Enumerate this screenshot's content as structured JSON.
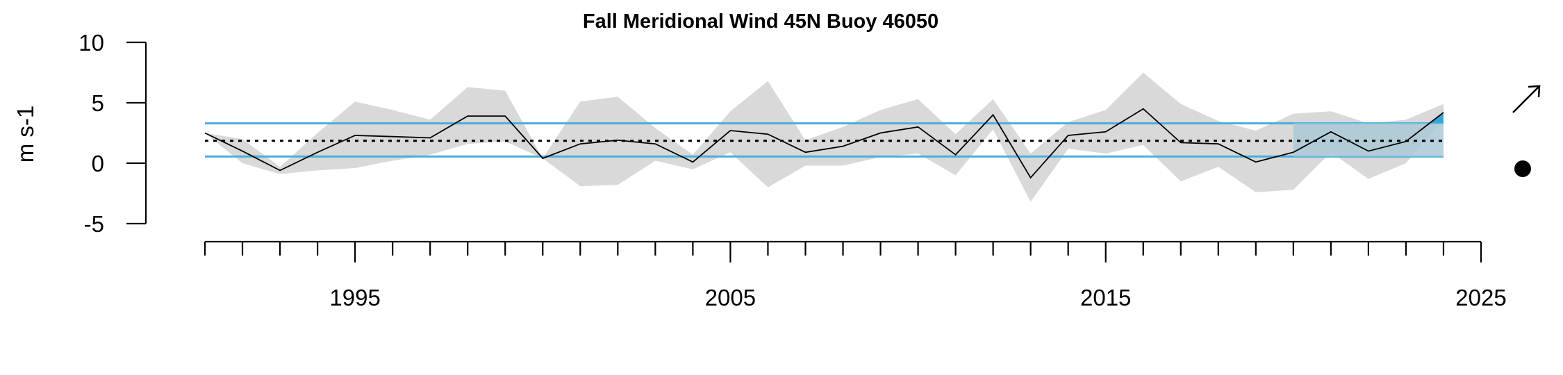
{
  "chart_data": {
    "type": "line",
    "title": "Fall Meridional Wind 45N Buoy 46050",
    "ylabel": "m s-1",
    "xlabel": "",
    "xlim": [
      1991,
      2025
    ],
    "ylim": [
      -5,
      10
    ],
    "x_ticks_major": [
      1995,
      2005,
      2015,
      2025
    ],
    "x_tick_labels": [
      "1995",
      "2005",
      "2015",
      "2025"
    ],
    "y_ticks": [
      -5,
      0,
      5,
      10
    ],
    "y_tick_labels": [
      "-5",
      "0",
      "5",
      "10"
    ],
    "grid": false,
    "x": [
      1991,
      1992,
      1993,
      1994,
      1995,
      1996,
      1997,
      1998,
      1999,
      2000,
      2001,
      2002,
      2003,
      2004,
      2005,
      2006,
      2007,
      2008,
      2009,
      2010,
      2011,
      2012,
      2013,
      2014,
      2015,
      2016,
      2017,
      2018,
      2019,
      2020,
      2021,
      2022,
      2023,
      2024
    ],
    "series": [
      {
        "values": [
          2.5,
          1.0,
          -0.6,
          0.9,
          2.3,
          2.2,
          2.1,
          3.9,
          3.9,
          0.4,
          1.6,
          1.9,
          1.6,
          0.1,
          2.7,
          2.4,
          0.9,
          1.4,
          2.5,
          3.0,
          0.7,
          4.0,
          -1.2,
          2.3,
          2.6,
          4.5,
          1.7,
          1.6,
          0.1,
          0.9,
          2.6,
          1.0,
          1.8,
          4.2
        ]
      }
    ],
    "uncertainty_band": {
      "lower": [
        2.5,
        0.0,
        -0.9,
        -0.6,
        -0.4,
        0.2,
        0.7,
        1.6,
        1.8,
        0.4,
        -1.9,
        -1.8,
        0.2,
        -0.5,
        0.9,
        -2.0,
        -0.2,
        -0.2,
        0.5,
        0.8,
        -1.0,
        2.8,
        -3.2,
        1.2,
        0.8,
        1.5,
        -1.5,
        -0.3,
        -2.4,
        -2.2,
        0.9,
        -1.3,
        0.0,
        3.6
      ],
      "upper": [
        2.5,
        2.0,
        -0.3,
        2.5,
        5.1,
        4.4,
        3.6,
        6.3,
        6.0,
        0.4,
        5.1,
        5.5,
        2.9,
        0.7,
        4.3,
        6.8,
        1.9,
        3.0,
        4.4,
        5.3,
        2.4,
        5.3,
        0.8,
        3.4,
        4.4,
        7.5,
        4.9,
        3.5,
        2.7,
        4.1,
        4.3,
        3.3,
        3.6,
        4.9
      ],
      "color": "#d9d9d9"
    },
    "mean": 1.85,
    "sd_upper": 3.3,
    "sd_lower": 0.55,
    "highlight_period": [
      2020,
      2024
    ],
    "trend_symbol": "up-right-arrow",
    "mean_symbol": "filled-circle",
    "colors": {
      "series_line": "#000000",
      "band": "#d9d9d9",
      "sd_lines": "#4aaed9",
      "highlight_box": "#a9c9d6",
      "highlight_fill_above": "#3aa6d6",
      "mean_line": "#000000"
    }
  }
}
